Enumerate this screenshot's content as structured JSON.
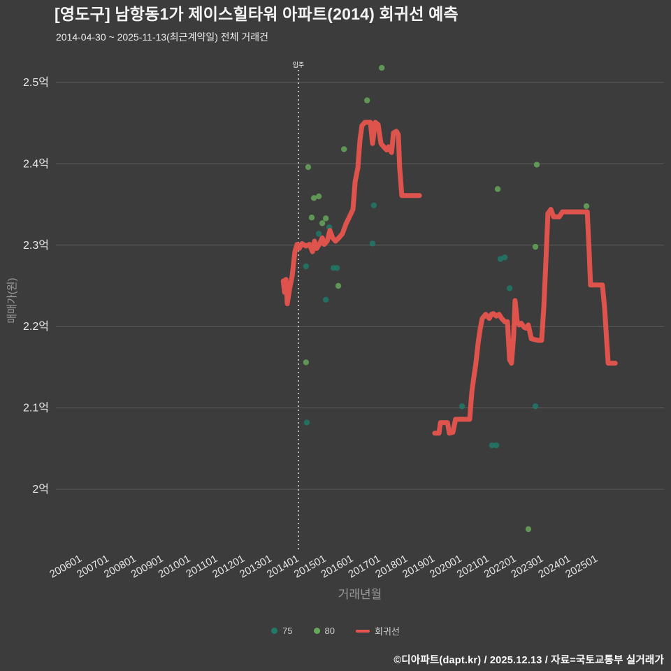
{
  "header": {
    "title": "[영도구] 남항동1가 제이스힐타워 아파트(2014) 회귀선 예측",
    "subtitle": "2014-04-30 ~ 2025-11-13(최근계약일) 전체 거래건"
  },
  "footer": {
    "credit": "©디아파트(dapt.kr) / 2025.12.13 / 자료=국토교통부 실거래가"
  },
  "chart_data": {
    "type": "scatter",
    "title": "[영도구] 남항동1가 제이스힐타워 아파트(2014) 회귀선 예측",
    "subtitle": "2014-04-30 ~ 2025-11-13(최근계약일) 전체 거래건",
    "xlabel": "거래년월",
    "ylabel": "매매가(원)",
    "xlim": [
      2005.2,
      2027.6
    ],
    "ylim": [
      1.92,
      2.53
    ],
    "grid": "horizontal",
    "legend_position": "bottom",
    "y_ticks": [
      {
        "label": "2억",
        "value": 2.0
      },
      {
        "label": "2.1억",
        "value": 2.1
      },
      {
        "label": "2.2억",
        "value": 2.2
      },
      {
        "label": "2.3억",
        "value": 2.3
      },
      {
        "label": "2.4억",
        "value": 2.4
      },
      {
        "label": "2.5억",
        "value": 2.5
      }
    ],
    "x_ticks": [
      {
        "label": "200601",
        "year": 2006
      },
      {
        "label": "200701",
        "year": 2007
      },
      {
        "label": "200801",
        "year": 2008
      },
      {
        "label": "200901",
        "year": 2009
      },
      {
        "label": "201001",
        "year": 2010
      },
      {
        "label": "201101",
        "year": 2011
      },
      {
        "label": "201201",
        "year": 2012
      },
      {
        "label": "201301",
        "year": 2013
      },
      {
        "label": "201401",
        "year": 2014
      },
      {
        "label": "201501",
        "year": 2015
      },
      {
        "label": "201601",
        "year": 2016
      },
      {
        "label": "201701",
        "year": 2017
      },
      {
        "label": "201801",
        "year": 2018
      },
      {
        "label": "201901",
        "year": 2019
      },
      {
        "label": "202001",
        "year": 2020
      },
      {
        "label": "202101",
        "year": 2021
      },
      {
        "label": "202201",
        "year": 2022
      },
      {
        "label": "202301",
        "year": 2023
      },
      {
        "label": "202401",
        "year": 2024
      },
      {
        "label": "202501",
        "year": 2025
      }
    ],
    "annotation": {
      "label": "입주",
      "year": 2014.16
    },
    "colors": {
      "background": "#3c3c3c",
      "grid": "#5c5c5c",
      "tick_text": "#e6e6e6",
      "axis_title": "#9b9b9b",
      "annotation_line": "#ffffff",
      "teal": "#1f7a6a",
      "green": "#67a85a",
      "regression": "#e8544e"
    },
    "series": [
      {
        "name": "75",
        "type": "scatter",
        "color": "#1f7a6a",
        "points": [
          [
            2014.44,
            2.274
          ],
          [
            2014.47,
            2.082
          ],
          [
            2014.91,
            2.314
          ],
          [
            2015.17,
            2.233
          ],
          [
            2015.3,
            2.322
          ],
          [
            2015.45,
            2.272
          ],
          [
            2015.58,
            2.272
          ],
          [
            2016.89,
            2.302
          ],
          [
            2016.94,
            2.349
          ],
          [
            2020.19,
            2.102
          ],
          [
            2021.29,
            2.054
          ],
          [
            2021.45,
            2.054
          ],
          [
            2021.6,
            2.283
          ],
          [
            2021.76,
            2.285
          ],
          [
            2021.94,
            2.247
          ],
          [
            2022.89,
            2.102
          ]
        ]
      },
      {
        "name": "80",
        "type": "scatter",
        "color": "#67a85a",
        "points": [
          [
            2014.44,
            2.156
          ],
          [
            2014.52,
            2.396
          ],
          [
            2014.65,
            2.334
          ],
          [
            2014.73,
            2.358
          ],
          [
            2014.91,
            2.36
          ],
          [
            2015.04,
            2.327
          ],
          [
            2015.17,
            2.333
          ],
          [
            2015.63,
            2.25
          ],
          [
            2015.84,
            2.418
          ],
          [
            2016.69,
            2.478
          ],
          [
            2017.23,
            2.518
          ],
          [
            2021.5,
            2.369
          ],
          [
            2022.63,
            1.951
          ],
          [
            2022.89,
            2.298
          ],
          [
            2022.94,
            2.399
          ],
          [
            2024.77,
            2.348
          ]
        ]
      },
      {
        "name": "회귀선",
        "type": "line",
        "color": "#e8544e",
        "segments": [
          [
            [
              2013.6,
              2.256
            ],
            [
              2013.65,
              2.242
            ],
            [
              2013.7,
              2.258
            ],
            [
              2013.75,
              2.228
            ],
            [
              2013.85,
              2.249
            ],
            [
              2013.93,
              2.262
            ],
            [
              2014.03,
              2.292
            ],
            [
              2014.11,
              2.301
            ],
            [
              2014.19,
              2.296
            ],
            [
              2014.29,
              2.302
            ],
            [
              2014.44,
              2.299
            ],
            [
              2014.57,
              2.301
            ],
            [
              2014.68,
              2.292
            ],
            [
              2014.75,
              2.305
            ],
            [
              2014.83,
              2.296
            ],
            [
              2014.93,
              2.301
            ],
            [
              2015.04,
              2.309
            ],
            [
              2015.11,
              2.301
            ],
            [
              2015.22,
              2.305
            ],
            [
              2015.32,
              2.318
            ],
            [
              2015.42,
              2.309
            ],
            [
              2015.53,
              2.305
            ],
            [
              2015.65,
              2.309
            ],
            [
              2015.78,
              2.314
            ],
            [
              2015.91,
              2.326
            ],
            [
              2016.04,
              2.335
            ],
            [
              2016.17,
              2.344
            ],
            [
              2016.25,
              2.378
            ],
            [
              2016.35,
              2.395
            ],
            [
              2016.43,
              2.43
            ],
            [
              2016.5,
              2.447
            ],
            [
              2016.61,
              2.451
            ],
            [
              2016.81,
              2.451
            ],
            [
              2016.89,
              2.425
            ],
            [
              2016.99,
              2.451
            ],
            [
              2017.1,
              2.448
            ],
            [
              2017.2,
              2.425
            ],
            [
              2017.3,
              2.421
            ],
            [
              2017.41,
              2.417
            ],
            [
              2017.48,
              2.421
            ],
            [
              2017.59,
              2.414
            ],
            [
              2017.66,
              2.438
            ],
            [
              2017.77,
              2.44
            ],
            [
              2017.84,
              2.436
            ],
            [
              2017.89,
              2.395
            ],
            [
              2017.97,
              2.361
            ],
            [
              2018.62,
              2.361
            ]
          ],
          [
            [
              2019.18,
              2.069
            ],
            [
              2019.34,
              2.069
            ],
            [
              2019.39,
              2.082
            ],
            [
              2019.65,
              2.082
            ],
            [
              2019.72,
              2.069
            ],
            [
              2019.85,
              2.07
            ],
            [
              2019.95,
              2.086
            ],
            [
              2020.47,
              2.086
            ],
            [
              2020.55,
              2.12
            ],
            [
              2020.62,
              2.137
            ],
            [
              2020.7,
              2.155
            ],
            [
              2020.78,
              2.18
            ],
            [
              2020.86,
              2.198
            ],
            [
              2020.93,
              2.21
            ],
            [
              2021.06,
              2.215
            ],
            [
              2021.19,
              2.21
            ],
            [
              2021.27,
              2.215
            ],
            [
              2021.34,
              2.216
            ],
            [
              2021.45,
              2.213
            ],
            [
              2021.55,
              2.215
            ],
            [
              2021.65,
              2.21
            ],
            [
              2021.76,
              2.206
            ],
            [
              2021.86,
              2.206
            ],
            [
              2021.94,
              2.159
            ],
            [
              2022.01,
              2.155
            ],
            [
              2022.09,
              2.189
            ],
            [
              2022.14,
              2.232
            ],
            [
              2022.22,
              2.206
            ],
            [
              2022.3,
              2.202
            ],
            [
              2022.37,
              2.204
            ],
            [
              2022.48,
              2.199
            ],
            [
              2022.55,
              2.198
            ],
            [
              2022.63,
              2.202
            ],
            [
              2022.74,
              2.185
            ],
            [
              2022.99,
              2.183
            ],
            [
              2023.12,
              2.183
            ],
            [
              2023.2,
              2.223
            ],
            [
              2023.28,
              2.284
            ],
            [
              2023.35,
              2.339
            ],
            [
              2023.46,
              2.344
            ],
            [
              2023.56,
              2.335
            ],
            [
              2023.77,
              2.335
            ],
            [
              2023.89,
              2.341
            ],
            [
              2024.8,
              2.341
            ],
            [
              2024.87,
              2.292
            ],
            [
              2024.92,
              2.251
            ],
            [
              2025.36,
              2.251
            ],
            [
              2025.44,
              2.223
            ],
            [
              2025.52,
              2.18
            ],
            [
              2025.57,
              2.155
            ],
            [
              2025.83,
              2.155
            ]
          ]
        ]
      }
    ]
  }
}
